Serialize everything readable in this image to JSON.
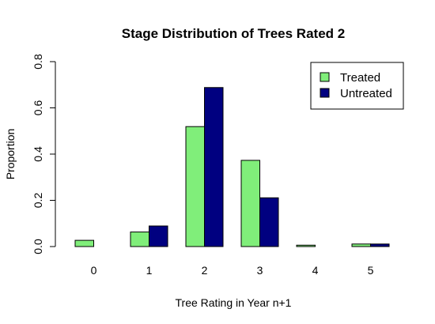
{
  "chart_data": {
    "type": "bar",
    "title": "Stage Distribution of Trees Rated 2",
    "xlabel": "Tree Rating in Year n+1",
    "ylabel": "Proportion",
    "categories": [
      "0",
      "1",
      "2",
      "3",
      "4",
      "5"
    ],
    "series": [
      {
        "name": "Treated",
        "color": "#80EE7A",
        "values": [
          0.027,
          0.063,
          0.519,
          0.373,
          0.006,
          0.011
        ]
      },
      {
        "name": "Untreated",
        "color": "#000080",
        "values": [
          0.0,
          0.089,
          0.688,
          0.211,
          0.0,
          0.011
        ]
      }
    ],
    "ylim": [
      0,
      0.8
    ],
    "yticks": [
      "0.0",
      "0.2",
      "0.4",
      "0.6",
      "0.8"
    ],
    "grid": false,
    "legend_position": "top-right"
  }
}
